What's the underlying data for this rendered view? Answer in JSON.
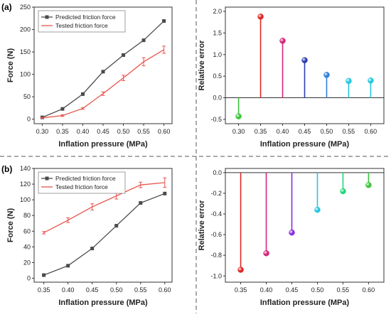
{
  "figure": {
    "panel_labels": [
      "(a)",
      "(b)"
    ]
  },
  "colors": {
    "predicted": "#4a4a4a",
    "tested": "#e8554e",
    "divider": "#555555",
    "axis": "#333333"
  },
  "chart_data": [
    {
      "id": "a-force",
      "type": "line",
      "title": "",
      "xlabel": "Inflation pressure (MPa)",
      "ylabel": "Force (N)",
      "x": [
        0.3,
        0.35,
        0.4,
        0.45,
        0.5,
        0.55,
        0.6
      ],
      "xticks": [
        "0.30",
        "0.35",
        "0.40",
        "0.45",
        "0.50",
        "0.55",
        "0.60"
      ],
      "xlim": [
        0.28,
        0.62
      ],
      "ylim": [
        -10,
        250
      ],
      "yticks": [
        0,
        50,
        100,
        150,
        200,
        250
      ],
      "legend": "top-left",
      "series": [
        {
          "name": "Predicted friction force",
          "color": "#4a4a4a",
          "marker": "square",
          "values": [
            4,
            23,
            56,
            106,
            143,
            176,
            219
          ],
          "errors": [
            0,
            0,
            0,
            0,
            0,
            0,
            0
          ]
        },
        {
          "name": "Tested friction force",
          "color": "#e8554e",
          "marker": "none",
          "values": [
            3,
            8,
            24,
            57,
            92,
            128,
            155
          ],
          "errors": [
            1,
            2,
            2,
            4,
            6,
            9,
            8
          ]
        }
      ]
    },
    {
      "id": "a-error",
      "type": "stem",
      "title": "",
      "xlabel": "Inflation pressure (MPa)",
      "ylabel": "Relative error",
      "x": [
        0.3,
        0.35,
        0.4,
        0.45,
        0.5,
        0.55,
        0.6
      ],
      "xticks": [
        "0.30",
        "0.35",
        "0.40",
        "0.45",
        "0.50",
        "0.55",
        "0.60"
      ],
      "xlim": [
        0.27,
        0.63
      ],
      "ylim": [
        -0.6,
        2.1
      ],
      "yticks": [
        "-0.5",
        "0.0",
        "0.5",
        "1.0",
        "1.5",
        "2.0"
      ],
      "ytick_values": [
        -0.5,
        0.0,
        0.5,
        1.0,
        1.5,
        2.0
      ],
      "values": [
        -0.43,
        1.88,
        1.32,
        0.87,
        0.53,
        0.39,
        0.4
      ],
      "colors": [
        "#3cc43c",
        "#e02626",
        "#d4267a",
        "#2b3fb0",
        "#2f7fdc",
        "#22c6e0",
        "#22c6e0"
      ]
    },
    {
      "id": "b-force",
      "type": "line",
      "title": "",
      "xlabel": "Inflation pressure (MPa)",
      "ylabel": "Force (N)",
      "x": [
        0.35,
        0.4,
        0.45,
        0.5,
        0.55,
        0.6
      ],
      "xticks": [
        "0.35",
        "0.40",
        "0.45",
        "0.50",
        "0.55",
        "0.60"
      ],
      "xlim": [
        0.33,
        0.615
      ],
      "ylim": [
        -5,
        140
      ],
      "yticks": [
        0,
        20,
        40,
        60,
        80,
        100,
        120,
        140
      ],
      "legend": "top-left",
      "series": [
        {
          "name": "Predicted friction force",
          "color": "#4a4a4a",
          "marker": "square",
          "values": [
            4,
            16,
            38,
            67,
            96,
            108
          ],
          "errors": [
            0,
            0,
            0,
            0,
            0,
            0
          ]
        },
        {
          "name": "Tested friction force",
          "color": "#e8554e",
          "marker": "none",
          "values": [
            58,
            74,
            91,
            105,
            119,
            122
          ],
          "errors": [
            1.5,
            3,
            4,
            4,
            3.5,
            6
          ]
        }
      ]
    },
    {
      "id": "b-error",
      "type": "stem",
      "title": "",
      "xlabel": "Inflation pressure (MPa)",
      "ylabel": "Relative error",
      "x": [
        0.35,
        0.4,
        0.45,
        0.5,
        0.55,
        0.6
      ],
      "xticks": [
        "0.35",
        "0.40",
        "0.45",
        "0.50",
        "0.55",
        "0.60"
      ],
      "xlim": [
        0.32,
        0.63
      ],
      "ylim": [
        -1.06,
        0.04
      ],
      "yticks": [
        "0.0",
        "-0.2",
        "-0.4",
        "-0.6",
        "-0.8",
        "-1.0"
      ],
      "ytick_values": [
        0.0,
        -0.2,
        -0.4,
        -0.6,
        -0.8,
        -1.0
      ],
      "values": [
        -0.94,
        -0.78,
        -0.58,
        -0.36,
        -0.18,
        -0.12
      ],
      "colors": [
        "#e02626",
        "#d4267a",
        "#8a2be2",
        "#22c6e0",
        "#22d67a",
        "#3cc43c"
      ]
    }
  ]
}
